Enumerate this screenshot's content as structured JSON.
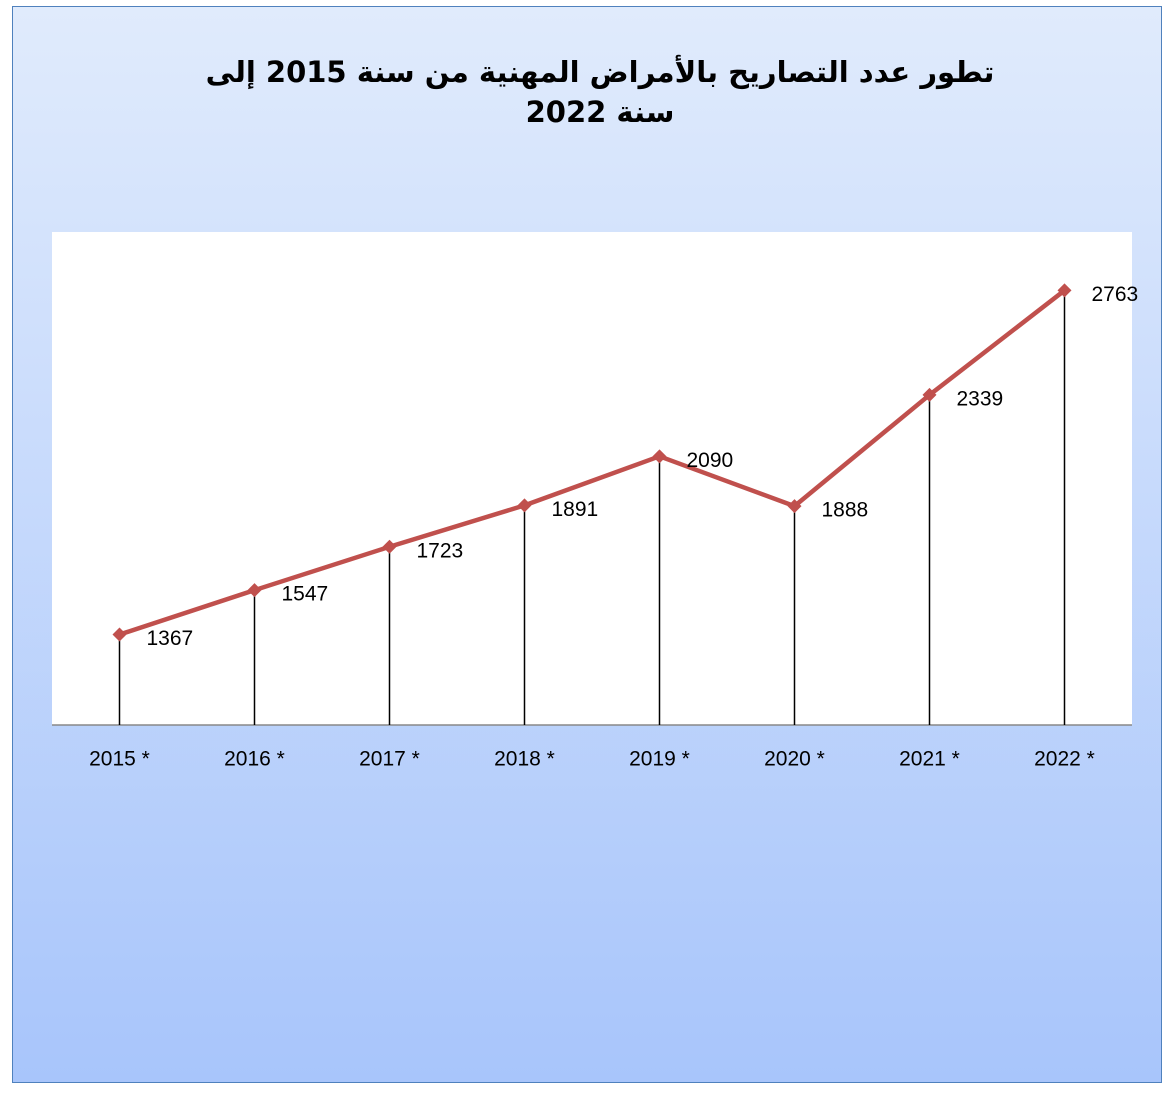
{
  "chart_data": {
    "type": "line",
    "title": "تطور عدد التصاريح بالأمراض المهنية من سنة 2015 إلى سنة 2022",
    "categories": [
      "2015 *",
      "2016 *",
      "2017 *",
      "2018 *",
      "2019 *",
      "2020 *",
      "2021 *",
      "2022 *"
    ],
    "values": [
      1367,
      1547,
      1723,
      1891,
      2090,
      1888,
      2339,
      2763
    ],
    "color": "#c0504d",
    "ylim": [
      1000,
      3000
    ]
  }
}
